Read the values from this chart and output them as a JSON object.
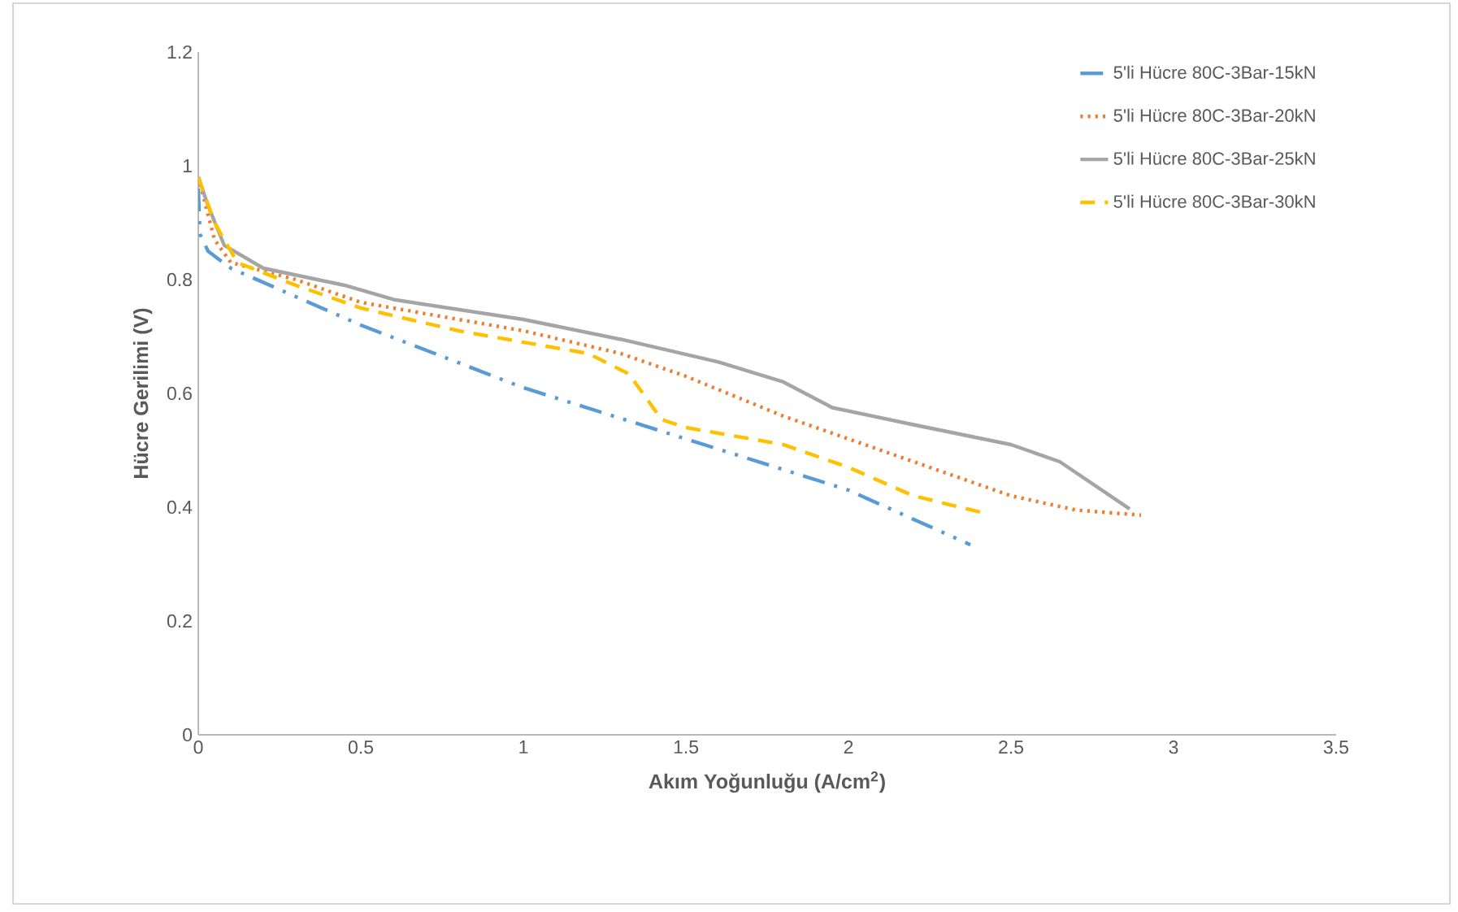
{
  "chart_data": {
    "type": "line",
    "xlabel": "Akım Yoğunluğu (A/cm$^{2}$)",
    "ylabel": "Hücre Gerilimi (V)",
    "xlim": [
      0,
      3.5
    ],
    "xticks": [
      0,
      0.5,
      1,
      1.5,
      2,
      2.5,
      3,
      3.5
    ],
    "ylim": [
      0,
      1.2
    ],
    "yticks": [
      0,
      0.2,
      0.4,
      0.6,
      0.8,
      1,
      1.2
    ],
    "grid": false,
    "legend": "top right",
    "marker": "none",
    "series": [
      {
        "name": "5'li Hücre 80C-3Bar-15kN",
        "color": "#5b9bd5",
        "line_style": "dashdot",
        "x": [
          0,
          0.005,
          0.03,
          0.1,
          0.5,
          1,
          1.5,
          2,
          2.375
        ],
        "values": [
          0.96,
          0.88,
          0.85,
          0.82,
          0.72,
          0.61,
          0.52,
          0.43,
          0.334
        ]
      },
      {
        "name": "5'li Hücre 80C-3Bar-20kN",
        "color": "#ed7d31",
        "line_style": "dotted",
        "x": [
          0,
          0.05,
          0.1,
          0.3,
          0.5,
          1,
          1.3,
          1.5,
          1.8,
          2,
          2.3,
          2.5,
          2.7,
          2.9
        ],
        "values": [
          0.98,
          0.87,
          0.83,
          0.8,
          0.76,
          0.71,
          0.67,
          0.63,
          0.56,
          0.52,
          0.46,
          0.42,
          0.395,
          0.386
        ]
      },
      {
        "name": "5'li Hücre 80C-3Bar-25kN",
        "color": "#a5a5a5",
        "line_style": "solid",
        "x": [
          0,
          0.03,
          0.08,
          0.2,
          0.45,
          0.6,
          1,
          1.3,
          1.6,
          1.8,
          1.95,
          2.2,
          2.5,
          2.65,
          2.865
        ],
        "values": [
          0.98,
          0.93,
          0.86,
          0.82,
          0.79,
          0.765,
          0.73,
          0.695,
          0.655,
          0.62,
          0.575,
          0.545,
          0.51,
          0.48,
          0.397
        ]
      },
      {
        "name": "5'li Hücre 80C-3Bar-30kN",
        "color": "#ffc000",
        "line_style": "dashed",
        "x": [
          0,
          0.05,
          0.12,
          0.3,
          0.5,
          0.8,
          1.2,
          1.325,
          1.425,
          1.5,
          1.8,
          2,
          2.2,
          2.415
        ],
        "values": [
          0.98,
          0.9,
          0.83,
          0.79,
          0.75,
          0.71,
          0.67,
          0.634,
          0.554,
          0.54,
          0.51,
          0.47,
          0.42,
          0.39
        ]
      }
    ]
  }
}
